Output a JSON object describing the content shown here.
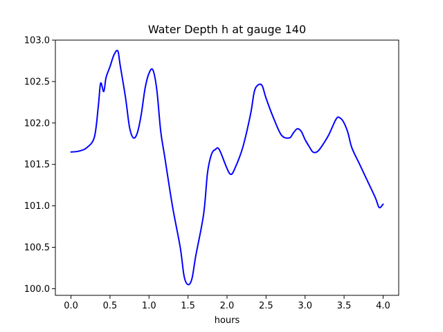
{
  "chart_data": {
    "type": "line",
    "title": "Water Depth h at gauge 140",
    "xlabel": "hours",
    "ylabel": "",
    "xlim": [
      -0.2,
      4.2
    ],
    "ylim": [
      99.92,
      103.0
    ],
    "xticks": [
      0.0,
      0.5,
      1.0,
      1.5,
      2.0,
      2.5,
      3.0,
      3.5,
      4.0
    ],
    "xtick_labels": [
      "0.0",
      "0.5",
      "1.0",
      "1.5",
      "2.0",
      "2.5",
      "3.0",
      "3.5",
      "4.0"
    ],
    "yticks": [
      100.0,
      100.5,
      101.0,
      101.5,
      102.0,
      102.5,
      103.0
    ],
    "ytick_labels": [
      "100.0",
      "100.5",
      "101.0",
      "101.5",
      "102.0",
      "102.5",
      "103.0"
    ],
    "grid": false,
    "legend": "none",
    "series": [
      {
        "color": "#0000ff",
        "x": [
          0.0,
          0.1,
          0.2,
          0.3,
          0.35,
          0.38,
          0.42,
          0.45,
          0.5,
          0.55,
          0.6,
          0.63,
          0.7,
          0.75,
          0.8,
          0.85,
          0.9,
          0.95,
          1.0,
          1.05,
          1.1,
          1.15,
          1.2,
          1.3,
          1.4,
          1.45,
          1.5,
          1.55,
          1.6,
          1.7,
          1.75,
          1.8,
          1.85,
          1.9,
          2.0,
          2.05,
          2.1,
          2.2,
          2.3,
          2.35,
          2.4,
          2.45,
          2.5,
          2.6,
          2.7,
          2.8,
          2.85,
          2.9,
          2.95,
          3.0,
          3.05,
          3.1,
          3.15,
          3.2,
          3.3,
          3.4,
          3.45,
          3.5,
          3.55,
          3.6,
          3.7,
          3.8,
          3.9,
          3.95,
          4.0
        ],
        "y": [
          101.65,
          101.66,
          101.7,
          101.83,
          102.2,
          102.48,
          102.38,
          102.55,
          102.68,
          102.82,
          102.87,
          102.7,
          102.3,
          101.95,
          101.82,
          101.88,
          102.1,
          102.42,
          102.6,
          102.64,
          102.4,
          101.9,
          101.6,
          101.0,
          100.5,
          100.15,
          100.05,
          100.12,
          100.4,
          100.9,
          101.4,
          101.62,
          101.68,
          101.68,
          101.45,
          101.38,
          101.45,
          101.7,
          102.1,
          102.38,
          102.46,
          102.45,
          102.3,
          102.05,
          101.85,
          101.82,
          101.88,
          101.93,
          101.9,
          101.8,
          101.72,
          101.65,
          101.65,
          101.7,
          101.85,
          102.05,
          102.06,
          102.0,
          101.88,
          101.7,
          101.5,
          101.3,
          101.1,
          100.98,
          101.02
        ]
      }
    ]
  }
}
